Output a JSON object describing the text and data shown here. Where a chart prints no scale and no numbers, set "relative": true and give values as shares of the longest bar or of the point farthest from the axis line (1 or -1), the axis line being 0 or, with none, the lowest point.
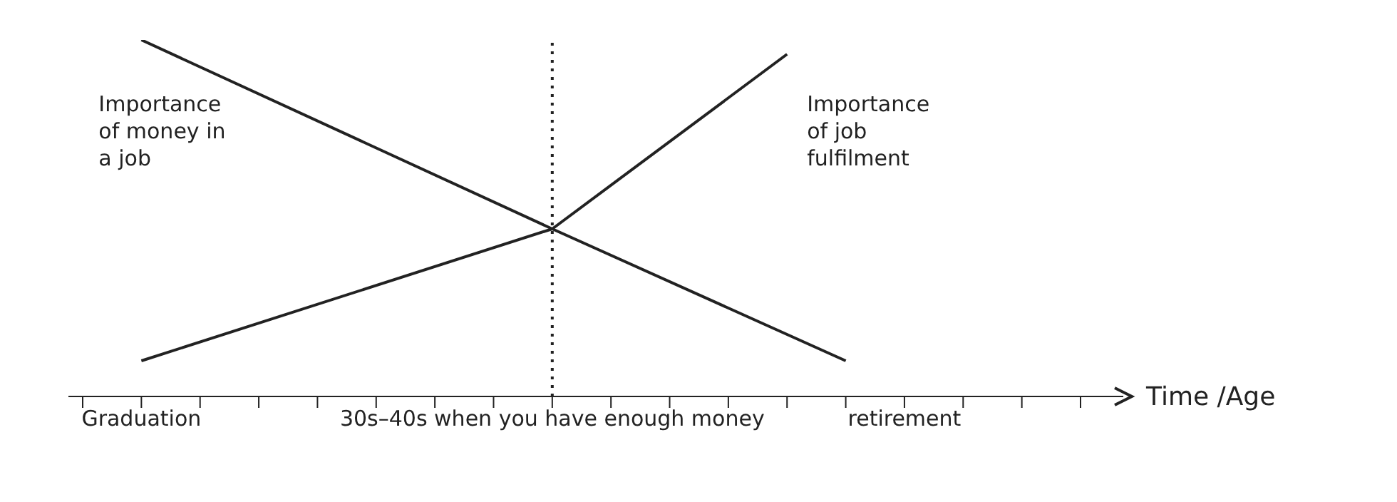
{
  "chart_data": {
    "type": "line",
    "relative": true,
    "xlabel": "Time /Age",
    "categories": [
      null,
      "Graduation",
      null,
      null,
      null,
      null,
      null,
      null,
      "30s–40s when you have enough money",
      null,
      null,
      null,
      null,
      null,
      "retirement",
      null,
      null,
      null
    ],
    "series": [
      {
        "name": "Importance of money in a job",
        "color": "#222222",
        "values": [
          null,
          1,
          null,
          null,
          null,
          null,
          null,
          null,
          0.47,
          null,
          null,
          null,
          null,
          0.1,
          null,
          null,
          null,
          null
        ]
      },
      {
        "name": "Importance of job fulfilment",
        "color": "#222222",
        "values": [
          null,
          0.1,
          null,
          null,
          null,
          null,
          null,
          null,
          0.47,
          null,
          null,
          null,
          0.96,
          null,
          null,
          null,
          null,
          null
        ]
      }
    ],
    "ref_lines": [
      {
        "axis": "x",
        "value": "30s–40s when you have enough money",
        "line_style": "dotted",
        "color": "#222222"
      }
    ]
  }
}
